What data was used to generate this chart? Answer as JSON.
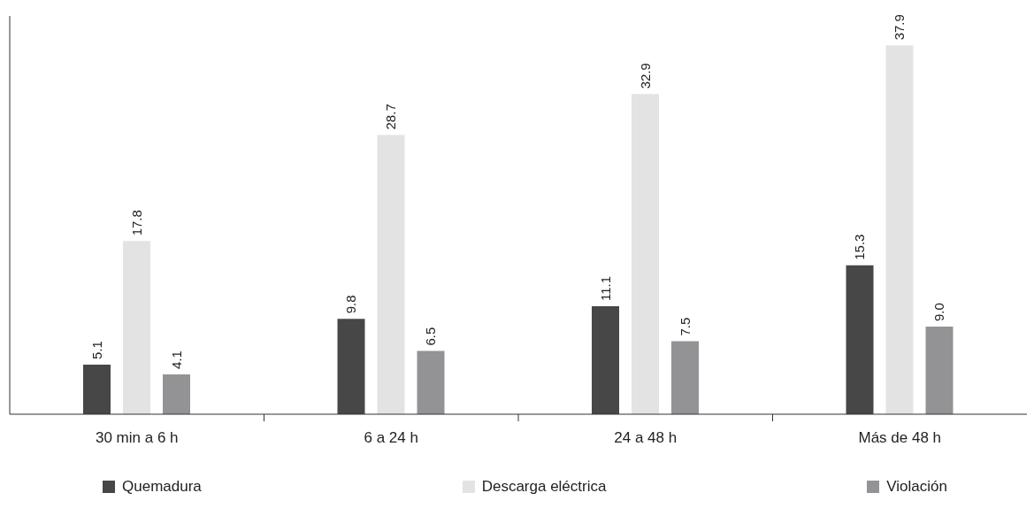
{
  "chart_data": {
    "type": "bar",
    "categories": [
      "30 min a 6 h",
      "6 a 24 h",
      "24 a 48 h",
      "Más de 48 h"
    ],
    "series": [
      {
        "name": "Quemadura",
        "color": "#474747",
        "values": [
          5.1,
          9.8,
          11.1,
          15.3
        ],
        "value_labels": [
          "5.1",
          "9.8",
          "11.1",
          "15.3"
        ]
      },
      {
        "name": "Descarga eléctrica",
        "color": "#e3e3e4",
        "values": [
          17.8,
          28.7,
          32.9,
          37.9
        ],
        "value_labels": [
          "17.8",
          "28.7",
          "32.9",
          "37.9"
        ]
      },
      {
        "name": "Violación",
        "color": "#939396",
        "values": [
          4.1,
          6.5,
          7.5,
          9.0
        ],
        "value_labels": [
          "4.1",
          "6.5",
          "7.5",
          "9.0"
        ]
      }
    ],
    "legend": "bottom",
    "grid": false
  }
}
